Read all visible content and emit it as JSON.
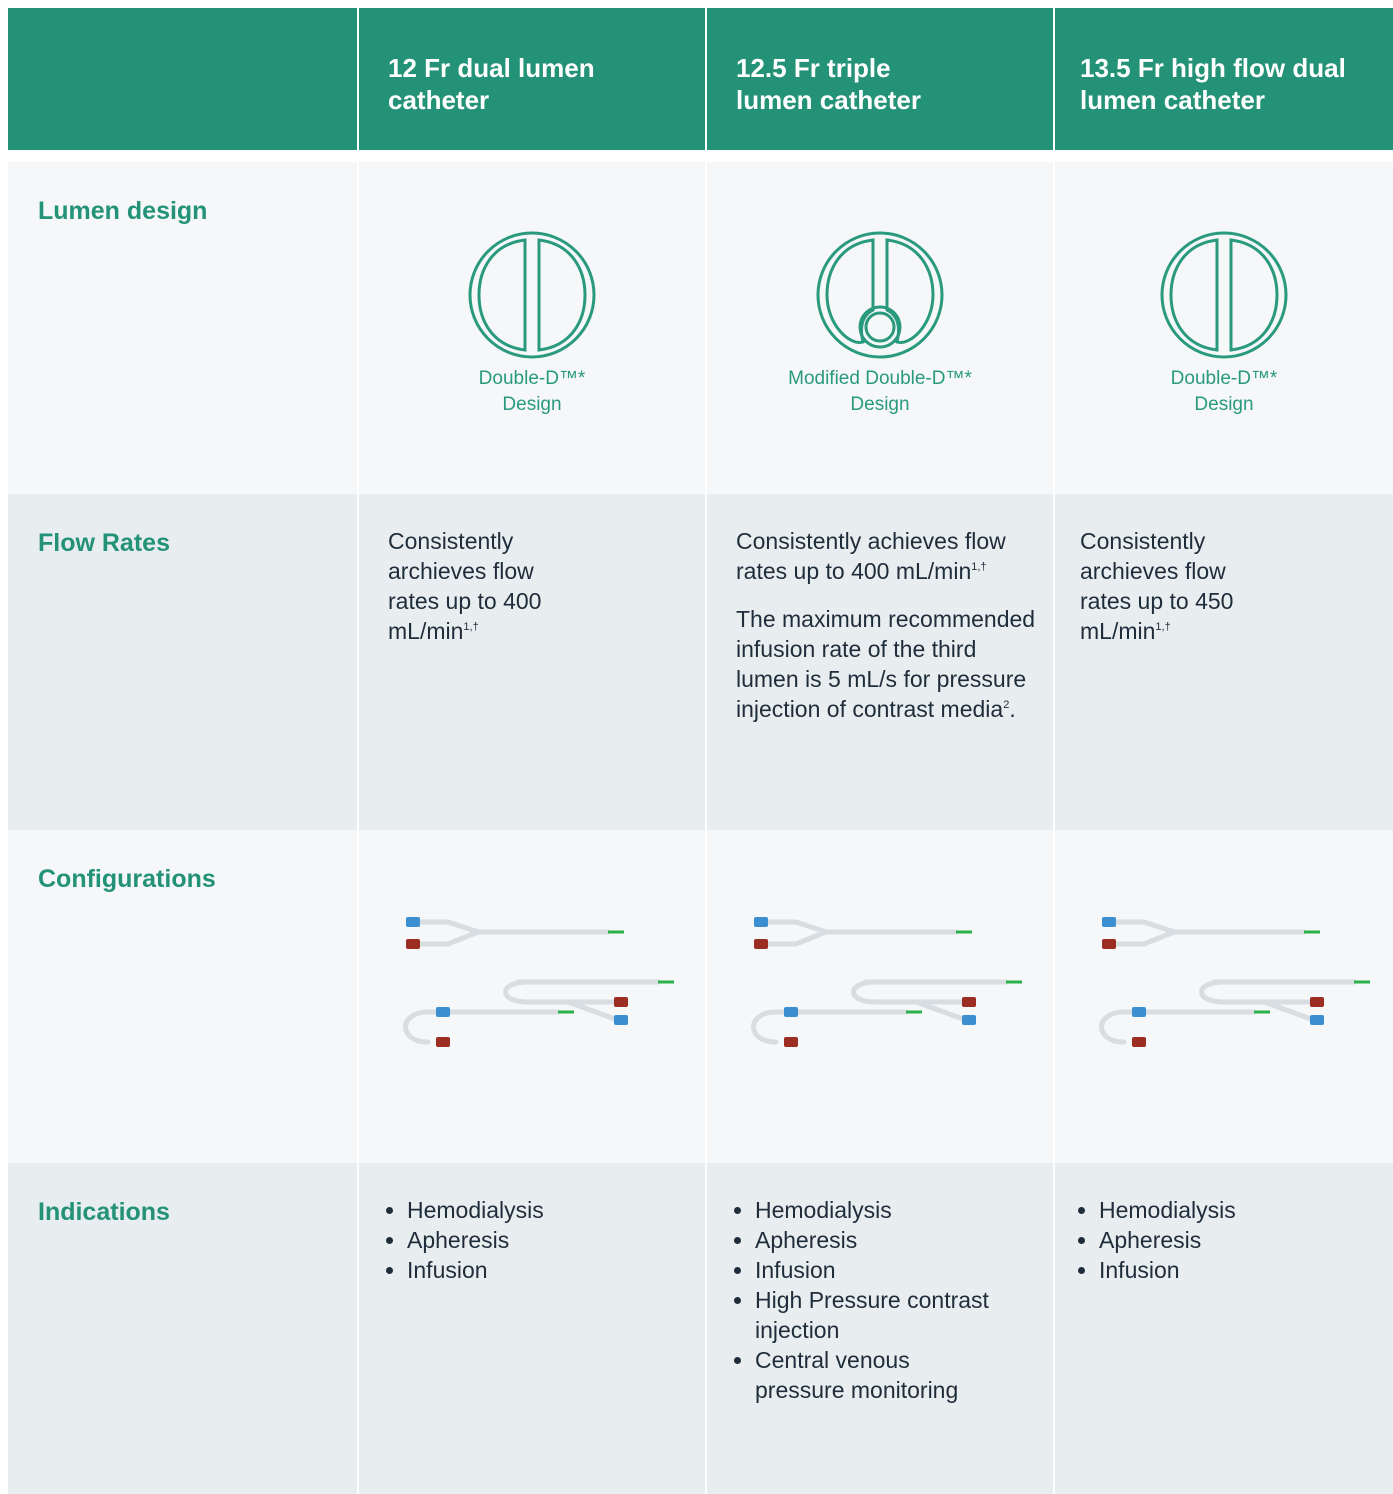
{
  "table": {
    "columns": [
      "12 Fr dual lumen catheter",
      "12.5 Fr triple lumen catheter",
      "13.5 Fr high flow dual lumen catheter"
    ],
    "rows": [
      {
        "label": "Lumen design",
        "cells": [
          "Double-D™* Design",
          "Modified Double-D™* Design",
          "Double-D™* Design"
        ]
      },
      {
        "label": "Flow Rates",
        "cells": [
          [
            {
              "text": "Consistently archieves flow rates up to 400 mL/min",
              "sup": "1,†"
            }
          ],
          [
            {
              "text": "Consistently achieves flow rates up to 400 mL/min",
              "sup": "1,†"
            },
            {
              "text": "The maximum recommended infusion rate of the third lumen is 5 mL/s for pressure injection of contrast media",
              "sup": "2",
              "after": "."
            }
          ],
          [
            {
              "text": "Consistently archieves flow rates up to 450 mL/min",
              "sup": "1,†"
            }
          ]
        ]
      },
      {
        "label": "Configurations"
      },
      {
        "label": "Indications",
        "cells": [
          [
            "Hemodialysis",
            "Apheresis",
            "Infusion"
          ],
          [
            "Hemodialysis",
            "Apheresis",
            "Infusion",
            "High Pressure contrast injection",
            "Central venous pressure monitoring"
          ],
          [
            "Hemodialysis",
            "Apheresis",
            "Infusion"
          ]
        ]
      }
    ]
  }
}
